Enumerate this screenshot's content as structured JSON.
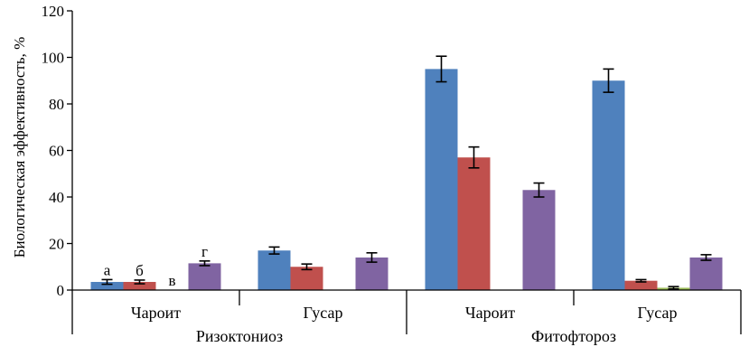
{
  "chart_data": {
    "type": "bar",
    "ylabel": "Биологическая эффективность, %",
    "ylim": [
      0,
      120
    ],
    "yticks": [
      0,
      20,
      40,
      60,
      80,
      100,
      120
    ],
    "grid": false,
    "groups": [
      {
        "name": "Ризоктониоз",
        "categories": [
          "Чароит",
          "Гусар"
        ]
      },
      {
        "name": "Фитофтороз",
        "categories": [
          "Чароит",
          "Гусар"
        ]
      }
    ],
    "categories": [
      "Чароит",
      "Гусар",
      "Чароит",
      "Гусар"
    ],
    "series": [
      {
        "label": "а",
        "color": "#4f81bd",
        "values": [
          3.5,
          17,
          95,
          90
        ],
        "errors": [
          1.0,
          1.5,
          5.5,
          5.0
        ]
      },
      {
        "label": "б",
        "color": "#c0504d",
        "values": [
          3.5,
          10,
          57,
          4
        ],
        "errors": [
          0.8,
          1.2,
          4.5,
          0.5
        ]
      },
      {
        "label": "в",
        "color": "#9bbb59",
        "values": [
          0,
          0,
          0,
          1
        ],
        "errors": [
          0,
          0,
          0,
          0.5
        ]
      },
      {
        "label": "г",
        "color": "#8064a2",
        "values": [
          11.5,
          14,
          43,
          14
        ],
        "errors": [
          1.0,
          2.0,
          3.0,
          1.2
        ]
      }
    ]
  }
}
